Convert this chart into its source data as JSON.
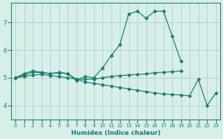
{
  "xlabel": "Humidex (Indice chaleur)",
  "x": [
    0,
    1,
    2,
    3,
    4,
    5,
    6,
    7,
    8,
    9,
    10,
    11,
    12,
    13,
    14,
    15,
    16,
    17,
    18,
    19,
    20,
    21,
    22,
    23
  ],
  "line1": [
    5.0,
    5.15,
    5.25,
    5.2,
    5.15,
    5.2,
    5.15,
    4.9,
    5.05,
    5.0,
    5.35,
    5.8,
    6.2,
    7.3,
    7.4,
    7.15,
    7.4,
    7.4,
    6.5,
    5.6,
    null,
    null,
    null,
    null
  ],
  "line2": [
    5.0,
    5.1,
    5.2,
    5.18,
    5.15,
    5.18,
    5.15,
    4.95,
    4.95,
    4.95,
    5.0,
    5.05,
    5.08,
    5.1,
    5.12,
    5.14,
    5.18,
    5.2,
    5.22,
    5.25,
    null,
    null,
    null,
    null
  ],
  "line3": [
    5.0,
    5.05,
    5.1,
    5.12,
    5.08,
    5.05,
    5.0,
    4.95,
    4.85,
    4.8,
    4.75,
    4.7,
    4.65,
    4.6,
    4.55,
    4.5,
    4.45,
    4.42,
    4.4,
    4.38,
    4.35,
    4.95,
    4.0,
    4.45
  ],
  "line_color": "#1a7a6e",
  "bg_color": "#d8eee8",
  "grid_color": "#aacfca",
  "ylim": [
    3.5,
    7.7
  ],
  "xlim": [
    -0.5,
    23.5
  ],
  "yticks": [
    4,
    5,
    6,
    7
  ],
  "xticks": [
    0,
    1,
    2,
    3,
    4,
    5,
    6,
    7,
    8,
    9,
    10,
    11,
    12,
    13,
    14,
    15,
    16,
    17,
    18,
    19,
    20,
    21,
    22,
    23
  ]
}
